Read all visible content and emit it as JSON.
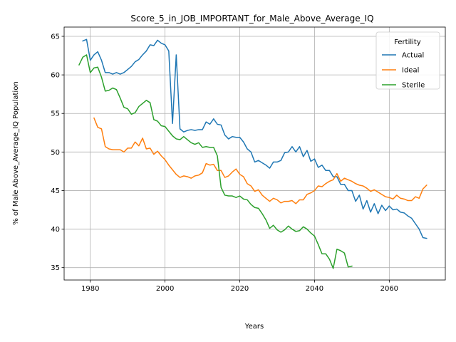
{
  "chart_data": {
    "type": "line",
    "title": "Score_5_in_JOB_IMPORTANT_for_Male_Above_Average_IQ",
    "xlabel": "Years",
    "ylabel": "% of Male Above_Average_IQ Population",
    "xlim": [
      1973,
      2075
    ],
    "ylim": [
      33.4,
      66.2
    ],
    "xticks": [
      1980,
      2000,
      2020,
      2040,
      2060
    ],
    "yticks": [
      35,
      40,
      45,
      50,
      55,
      60,
      65
    ],
    "grid": true,
    "legend": {
      "title": "Fertility",
      "placement": "top-right"
    },
    "series": [
      {
        "name": "Actual",
        "color": "#1f77b4",
        "x": [
          1978,
          1979,
          1980,
          1981,
          1982,
          1983,
          1984,
          1985,
          1986,
          1987,
          1988,
          1989,
          1990,
          1991,
          1992,
          1993,
          1994,
          1995,
          1996,
          1997,
          1998,
          1999,
          2000,
          2001,
          2002,
          2003,
          2004,
          2005,
          2006,
          2007,
          2008,
          2009,
          2010,
          2011,
          2012,
          2013,
          2014,
          2015,
          2016,
          2017,
          2018,
          2019,
          2020,
          2021,
          2022,
          2023,
          2024,
          2025,
          2026,
          2027,
          2028,
          2029,
          2030,
          2031,
          2032,
          2033,
          2034,
          2035,
          2036,
          2037,
          2038,
          2039,
          2040,
          2041,
          2042,
          2043,
          2044,
          2045,
          2046,
          2047,
          2048,
          2049,
          2050,
          2051,
          2052,
          2053,
          2054,
          2055,
          2056,
          2057,
          2058,
          2059,
          2060,
          2061,
          2062,
          2063,
          2064,
          2065,
          2066,
          2067,
          2068,
          2069,
          2070
        ],
        "values": [
          64.4,
          64.6,
          61.9,
          62.6,
          63.0,
          61.9,
          60.3,
          60.3,
          60.1,
          60.3,
          60.1,
          60.3,
          60.7,
          61.1,
          61.7,
          62.0,
          62.6,
          63.1,
          63.9,
          63.8,
          64.5,
          64.1,
          63.9,
          63.1,
          53.7,
          62.6,
          53.0,
          52.6,
          52.8,
          52.9,
          52.8,
          52.9,
          52.9,
          53.9,
          53.6,
          54.3,
          53.6,
          53.5,
          52.2,
          51.7,
          52.0,
          51.9,
          51.9,
          51.3,
          50.4,
          50.0,
          48.7,
          48.9,
          48.6,
          48.3,
          47.9,
          48.7,
          48.7,
          48.9,
          49.9,
          50.0,
          50.7,
          50.0,
          50.7,
          49.4,
          50.2,
          48.8,
          49.1,
          48.0,
          48.3,
          47.6,
          47.6,
          46.8,
          46.8,
          45.8,
          45.8,
          45.0,
          45.0,
          43.6,
          44.4,
          42.6,
          43.7,
          42.2,
          43.3,
          42.0,
          43.1,
          42.4,
          43.0,
          42.5,
          42.6,
          42.2,
          42.1,
          41.7,
          41.4,
          40.7,
          40.0,
          38.9,
          38.8
        ]
      },
      {
        "name": "Ideal",
        "color": "#ff7f0e",
        "x": [
          1981,
          1982,
          1983,
          1984,
          1985,
          1986,
          1987,
          1988,
          1989,
          1990,
          1991,
          1992,
          1993,
          1994,
          1995,
          1996,
          1997,
          1998,
          1999,
          2000,
          2001,
          2002,
          2003,
          2004,
          2005,
          2006,
          2007,
          2008,
          2009,
          2010,
          2011,
          2012,
          2013,
          2014,
          2015,
          2016,
          2017,
          2018,
          2019,
          2020,
          2021,
          2022,
          2023,
          2024,
          2025,
          2026,
          2027,
          2028,
          2029,
          2030,
          2031,
          2032,
          2033,
          2034,
          2035,
          2036,
          2037,
          2038,
          2039,
          2040,
          2041,
          2042,
          2043,
          2044,
          2045,
          2046,
          2047,
          2048,
          2049,
          2050,
          2051,
          2052,
          2053,
          2054,
          2055,
          2056,
          2057,
          2058,
          2059,
          2060,
          2061,
          2062,
          2063,
          2064,
          2065,
          2066,
          2067,
          2068,
          2069,
          2070
        ],
        "values": [
          54.4,
          53.2,
          53.0,
          50.7,
          50.4,
          50.3,
          50.3,
          50.3,
          50.0,
          50.5,
          50.5,
          51.3,
          50.8,
          51.8,
          50.4,
          50.5,
          49.7,
          50.1,
          49.5,
          49.0,
          48.3,
          47.7,
          47.1,
          46.7,
          46.9,
          46.8,
          46.6,
          46.9,
          47.0,
          47.3,
          48.5,
          48.3,
          48.4,
          47.6,
          47.6,
          46.7,
          46.9,
          47.4,
          47.8,
          47.1,
          46.8,
          45.9,
          45.6,
          44.9,
          45.1,
          44.4,
          44.0,
          43.6,
          44.0,
          43.8,
          43.4,
          43.6,
          43.6,
          43.7,
          43.3,
          43.8,
          43.8,
          44.5,
          44.7,
          45.0,
          45.6,
          45.5,
          45.9,
          46.2,
          46.4,
          47.2,
          46.2,
          46.6,
          46.4,
          46.2,
          45.9,
          45.7,
          45.6,
          45.3,
          44.9,
          45.1,
          44.8,
          44.5,
          44.2,
          44.1,
          43.9,
          44.4,
          44.0,
          43.9,
          43.7,
          43.7,
          44.2,
          44.0,
          45.2,
          45.7
        ]
      },
      {
        "name": "Sterile",
        "color": "#2ca02c",
        "x": [
          1977,
          1978,
          1979,
          1980,
          1981,
          1982,
          1983,
          1984,
          1985,
          1986,
          1987,
          1988,
          1989,
          1990,
          1991,
          1992,
          1993,
          1994,
          1995,
          1996,
          1997,
          1998,
          1999,
          2000,
          2001,
          2002,
          2003,
          2004,
          2005,
          2006,
          2007,
          2008,
          2009,
          2010,
          2011,
          2012,
          2013,
          2014,
          2015,
          2016,
          2017,
          2018,
          2019,
          2020,
          2021,
          2022,
          2023,
          2024,
          2025,
          2026,
          2027,
          2028,
          2029,
          2030,
          2031,
          2032,
          2033,
          2034,
          2035,
          2036,
          2037,
          2038,
          2039,
          2040,
          2041,
          2042,
          2043,
          2044,
          2045,
          2046,
          2047,
          2048,
          2049,
          2050
        ],
        "values": [
          61.3,
          62.3,
          62.6,
          60.3,
          60.9,
          61.0,
          59.7,
          57.9,
          58.0,
          58.3,
          58.1,
          57.0,
          55.8,
          55.6,
          54.9,
          55.1,
          55.9,
          56.3,
          56.7,
          56.4,
          54.2,
          54.0,
          53.4,
          53.3,
          52.7,
          52.1,
          51.7,
          51.6,
          52.0,
          51.6,
          51.2,
          51.0,
          51.2,
          50.6,
          50.7,
          50.6,
          50.6,
          49.5,
          45.4,
          44.4,
          44.3,
          44.3,
          44.1,
          44.3,
          43.9,
          43.8,
          43.2,
          42.8,
          42.7,
          42.0,
          41.2,
          40.1,
          40.5,
          39.9,
          39.6,
          39.9,
          40.4,
          40.0,
          39.7,
          39.8,
          40.3,
          40.0,
          39.5,
          39.1,
          38.0,
          36.8,
          36.8,
          36.1,
          34.9,
          37.4,
          37.2,
          36.9,
          35.1,
          35.2
        ]
      }
    ]
  }
}
